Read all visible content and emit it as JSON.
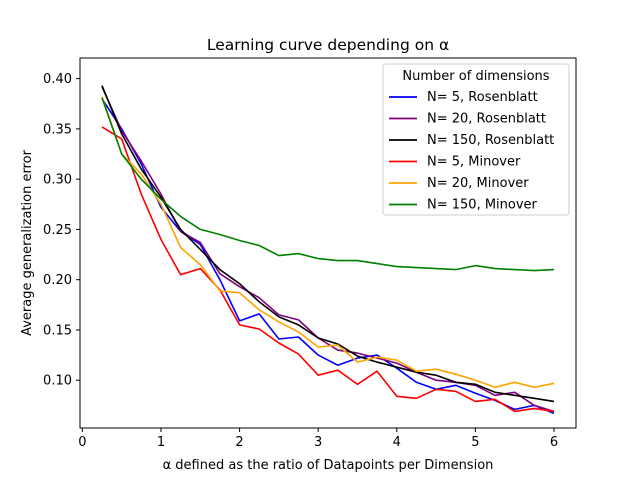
{
  "chart_data": {
    "type": "line",
    "title": "Learning curve depending on α",
    "xlabel": "α defined as the ratio of Datapoints per Dimension",
    "ylabel": "Average generalization error",
    "xlim": [
      -0.03,
      6.28
    ],
    "ylim": [
      0.0525,
      0.4205
    ],
    "xticks": [
      0,
      1,
      2,
      3,
      4,
      5,
      6
    ],
    "yticks": [
      0.1,
      0.15,
      0.2,
      0.25,
      0.3,
      0.35,
      0.4
    ],
    "xtick_labels": [
      "0",
      "1",
      "2",
      "3",
      "4",
      "5",
      "6"
    ],
    "ytick_labels": [
      "0.10",
      "0.15",
      "0.20",
      "0.25",
      "0.30",
      "0.35",
      "0.40"
    ],
    "grid": false,
    "legend": {
      "title": "Number of dimensions",
      "position": "top-right"
    },
    "x": [
      0.25,
      0.5,
      0.75,
      1.0,
      1.25,
      1.5,
      1.75,
      2.0,
      2.25,
      2.5,
      2.75,
      3.0,
      3.25,
      3.5,
      3.75,
      4.0,
      4.25,
      4.5,
      4.75,
      5.0,
      5.25,
      5.5,
      5.75,
      6.0
    ],
    "series": [
      {
        "name": "N= 5, Rosenblatt",
        "color": "#0000ff",
        "values": [
          0.38,
          0.35,
          0.315,
          0.272,
          0.248,
          0.235,
          0.2,
          0.159,
          0.166,
          0.141,
          0.143,
          0.125,
          0.115,
          0.122,
          0.125,
          0.112,
          0.098,
          0.091,
          0.095,
          0.087,
          0.08,
          0.071,
          0.075,
          0.067
        ]
      },
      {
        "name": "N= 20, Rosenblatt",
        "color": "#800080",
        "values": [
          0.392,
          0.348,
          0.318,
          0.285,
          0.248,
          0.237,
          0.206,
          0.193,
          0.182,
          0.165,
          0.16,
          0.142,
          0.13,
          0.127,
          0.122,
          0.117,
          0.108,
          0.1,
          0.098,
          0.095,
          0.085,
          0.088,
          0.075,
          0.069
        ]
      },
      {
        "name": "N= 150, Rosenblatt",
        "color": "#000000",
        "values": [
          0.393,
          0.345,
          0.31,
          0.282,
          0.25,
          0.23,
          0.21,
          0.196,
          0.178,
          0.163,
          0.155,
          0.142,
          0.136,
          0.124,
          0.118,
          0.113,
          0.108,
          0.105,
          0.098,
          0.096,
          0.088,
          0.085,
          0.082,
          0.079
        ]
      },
      {
        "name": "N= 5, Minover",
        "color": "#ff0000",
        "values": [
          0.352,
          0.34,
          0.285,
          0.24,
          0.205,
          0.211,
          0.19,
          0.155,
          0.151,
          0.137,
          0.126,
          0.105,
          0.11,
          0.096,
          0.109,
          0.084,
          0.082,
          0.091,
          0.089,
          0.079,
          0.081,
          0.069,
          0.072,
          0.069
        ]
      },
      {
        "name": "N= 20, Minover",
        "color": "#ffa500",
        "values": [
          0.382,
          0.325,
          0.305,
          0.275,
          0.232,
          0.215,
          0.189,
          0.187,
          0.17,
          0.158,
          0.148,
          0.133,
          0.135,
          0.118,
          0.123,
          0.12,
          0.109,
          0.111,
          0.106,
          0.1,
          0.093,
          0.098,
          0.093,
          0.097
        ]
      },
      {
        "name": "N= 150, Minover",
        "color": "#008000",
        "values": [
          0.381,
          0.325,
          0.3,
          0.28,
          0.263,
          0.25,
          0.245,
          0.239,
          0.234,
          0.224,
          0.226,
          0.221,
          0.219,
          0.219,
          0.216,
          0.213,
          0.212,
          0.211,
          0.21,
          0.214,
          0.211,
          0.21,
          0.209,
          0.21
        ]
      }
    ]
  }
}
